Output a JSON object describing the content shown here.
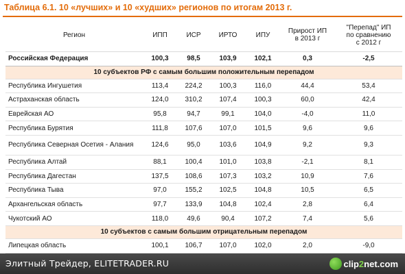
{
  "title": "Таблица 6.1. 10 «лучших» и 10 «худших» регионов по итогам 2013 г.",
  "headers": {
    "region": "Регион",
    "ipp": "ИПП",
    "isr": "ИСР",
    "irto": "ИРТО",
    "ipu": "ИПУ",
    "prirost_line1": "Прирост ИП",
    "prirost_line2": "в 2013 г",
    "perepad_line1": "\"Перепад\" ИП",
    "perepad_line2": "по сравнению",
    "perepad_line3": "с 2012 г"
  },
  "total": {
    "region": "Российская Федерация",
    "ipp": "100,3",
    "isr": "98,5",
    "irto": "103,9",
    "ipu": "102,1",
    "prirost": "0,3",
    "perepad": "-2,5"
  },
  "section_positive": "10 субъектов РФ с самым большим положительным перепадом",
  "rows_positive": [
    {
      "region": "Республика Ингушетия",
      "ipp": "113,4",
      "isr": "224,2",
      "irto": "100,3",
      "ipu": "116,0",
      "prirost": "44,4",
      "perepad": "53,4"
    },
    {
      "region": "Астраханская область",
      "ipp": "124,0",
      "isr": "310,2",
      "irto": "107,4",
      "ipu": "100,3",
      "prirost": "60,0",
      "perepad": "42,4"
    },
    {
      "region": "Еврейская АО",
      "ipp": "95,8",
      "isr": "94,7",
      "irto": "99,1",
      "ipu": "104,0",
      "prirost": "-4,0",
      "perepad": "11,0"
    },
    {
      "region": "Республика Бурятия",
      "ipp": "111,8",
      "isr": "107,6",
      "irto": "107,0",
      "ipu": "101,5",
      "prirost": "9,6",
      "perepad": "9,6"
    },
    {
      "region": "Республика Северная  Осетия - Алания",
      "ipp": "124,6",
      "isr": "95,0",
      "irto": "103,6",
      "ipu": "104,9",
      "prirost": "9,2",
      "perepad": "9,3"
    },
    {
      "region": "Республика Алтай",
      "ipp": "88,1",
      "isr": "100,4",
      "irto": "101,0",
      "ipu": "103,8",
      "prirost": "-2,1",
      "perepad": "8,1"
    },
    {
      "region": "Республика Дагестан",
      "ipp": "137,5",
      "isr": "108,6",
      "irto": "107,3",
      "ipu": "103,2",
      "prirost": "10,9",
      "perepad": "7,6"
    },
    {
      "region": "Республика Тыва",
      "ipp": "97,0",
      "isr": "155,2",
      "irto": "102,5",
      "ipu": "104,8",
      "prirost": "10,5",
      "perepad": "6,5"
    },
    {
      "region": "Архангельская область",
      "ipp": "97,7",
      "isr": "133,9",
      "irto": "104,8",
      "ipu": "102,4",
      "prirost": "2,8",
      "perepad": "6,4"
    },
    {
      "region": "Чукотский АО",
      "ipp": "118,0",
      "isr": "49,6",
      "irto": "90,4",
      "ipu": "107,2",
      "prirost": "7,4",
      "perepad": "5,6"
    }
  ],
  "section_negative": "10 субъектов с самым большим отрицательным  перепадом",
  "rows_negative": [
    {
      "region": "Липецкая область",
      "ipp": "100,1",
      "isr": "106,7",
      "irto": "107,0",
      "ipu": "102,0",
      "prirost": "2,0",
      "perepad": "-9,0"
    }
  ],
  "footer": {
    "text": "Элитный Трейдер, ELITETRADER.RU",
    "logo_prefix": "clip",
    "logo_accent": "2",
    "logo_suffix": "net.com"
  }
}
